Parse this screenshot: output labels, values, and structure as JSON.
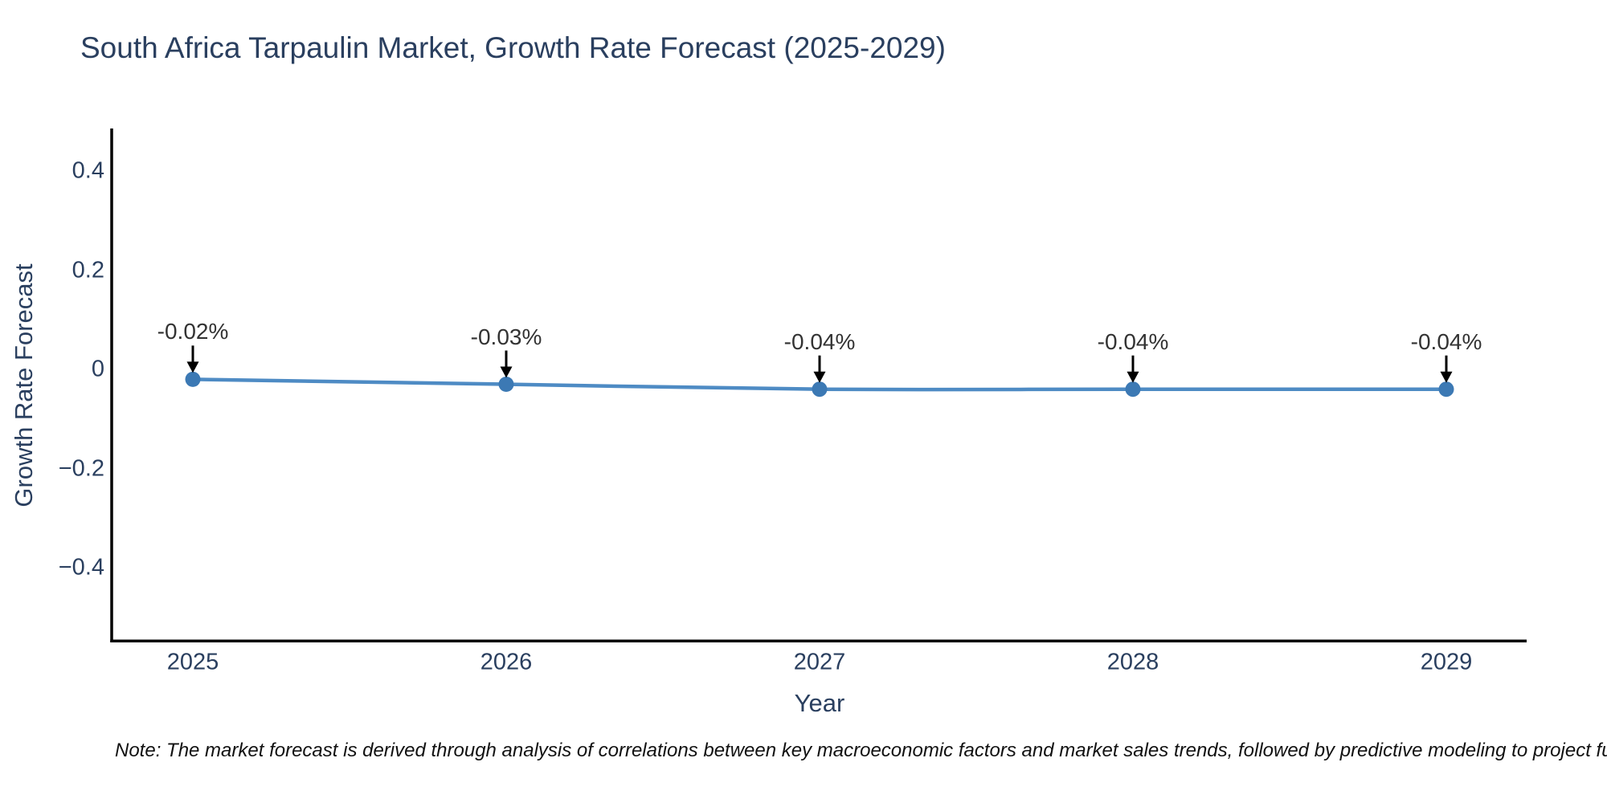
{
  "note": "Note: The market forecast is derived through analysis of correlations between key macroeconomic factors and market sales trends, followed by predictive modeling to project future sales.",
  "chart_data": {
    "type": "line",
    "title": "South Africa Tarpaulin Market, Growth Rate Forecast (2025-2029)",
    "xlabel": "Year",
    "ylabel": "Growth Rate Forecast",
    "x": [
      2025,
      2026,
      2027,
      2028,
      2029
    ],
    "x_tick_labels": [
      "2025",
      "2026",
      "2027",
      "2028",
      "2029"
    ],
    "series": [
      {
        "name": "Growth Rate Forecast",
        "values": [
          -0.02,
          -0.03,
          -0.04,
          -0.04,
          -0.04
        ]
      }
    ],
    "point_labels": [
      "-0.02%",
      "-0.03%",
      "-0.04%",
      "-0.04%",
      "-0.04%"
    ],
    "y_ticks": [
      {
        "value": 0.4,
        "label": "0.4"
      },
      {
        "value": 0.2,
        "label": "0.2"
      },
      {
        "value": 0.0,
        "label": "0"
      },
      {
        "value": -0.2,
        "label": "−0.2"
      },
      {
        "value": -0.4,
        "label": "−0.4"
      }
    ],
    "ylim": [
      -0.55,
      0.49
    ],
    "grid": false,
    "legend": "none",
    "line_color": "#4e8bc4",
    "marker_color": "#3c79b4",
    "axis_line_color": "#000000",
    "annotation_arrow_color": "#000000",
    "annotation_text_color": "#333333",
    "text_color": "#2a3f5f"
  }
}
